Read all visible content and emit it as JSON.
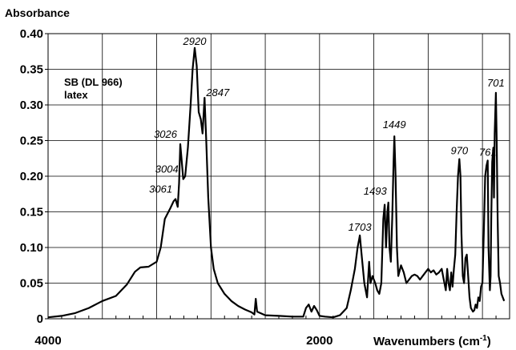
{
  "chart_data": {
    "type": "line",
    "title": "",
    "ylabel": "Absorbance",
    "xlabel_prefix": "Wavenumbers (cm",
    "xlabel_sup": "-1",
    "xlabel_suffix": ")",
    "sample_label": [
      "SB (DL 966)",
      "latex"
    ],
    "xlim": [
      4000,
      600
    ],
    "ylim": [
      0,
      0.4
    ],
    "y_ticks": [
      {
        "value": 0.4,
        "label": "0.40"
      },
      {
        "value": 0.35,
        "label": "0.35"
      },
      {
        "value": 0.3,
        "label": "0.30"
      },
      {
        "value": 0.25,
        "label": "0.25"
      },
      {
        "value": 0.2,
        "label": "0.20"
      },
      {
        "value": 0.15,
        "label": "0.15"
      },
      {
        "value": 0.1,
        "label": "0.10"
      },
      {
        "value": 0.05,
        "label": "0.05"
      },
      {
        "value": 0,
        "label": "0"
      }
    ],
    "x_tick_labels": [
      {
        "value": 4000,
        "label": "4000"
      },
      {
        "value": 2000,
        "label": "2000"
      }
    ],
    "x_grid": [
      3600,
      3200,
      2800,
      2400,
      2000,
      1600,
      1200,
      800
    ],
    "grid": true,
    "peak_labels": [
      {
        "label": "2920",
        "x": 2920,
        "y": 0.38
      },
      {
        "label": "2847",
        "x": 2847,
        "y": 0.31
      },
      {
        "label": "3026",
        "x": 3026,
        "y": 0.245
      },
      {
        "label": "3004",
        "x": 3004,
        "y": 0.196
      },
      {
        "label": "3061",
        "x": 3061,
        "y": 0.168
      },
      {
        "label": "1703",
        "x": 1703,
        "y": 0.117
      },
      {
        "label": "1493",
        "x": 1493,
        "y": 0.163
      },
      {
        "label": "1449",
        "x": 1449,
        "y": 0.256
      },
      {
        "label": "970",
        "x": 970,
        "y": 0.224
      },
      {
        "label": "761",
        "x": 761,
        "y": 0.222
      },
      {
        "label": "701",
        "x": 701,
        "y": 0.317
      }
    ],
    "series": [
      {
        "color": "#000000",
        "points": [
          [
            4000,
            0.002
          ],
          [
            3900,
            0.004
          ],
          [
            3800,
            0.008
          ],
          [
            3700,
            0.015
          ],
          [
            3600,
            0.025
          ],
          [
            3500,
            0.032
          ],
          [
            3420,
            0.048
          ],
          [
            3360,
            0.066
          ],
          [
            3320,
            0.072
          ],
          [
            3260,
            0.073
          ],
          [
            3200,
            0.08
          ],
          [
            3170,
            0.1
          ],
          [
            3140,
            0.14
          ],
          [
            3100,
            0.155
          ],
          [
            3075,
            0.165
          ],
          [
            3061,
            0.168
          ],
          [
            3045,
            0.157
          ],
          [
            3035,
            0.19
          ],
          [
            3026,
            0.245
          ],
          [
            3015,
            0.22
          ],
          [
            3004,
            0.196
          ],
          [
            2990,
            0.2
          ],
          [
            2970,
            0.24
          ],
          [
            2950,
            0.3
          ],
          [
            2935,
            0.35
          ],
          [
            2920,
            0.38
          ],
          [
            2905,
            0.355
          ],
          [
            2890,
            0.29
          ],
          [
            2875,
            0.28
          ],
          [
            2862,
            0.26
          ],
          [
            2847,
            0.31
          ],
          [
            2835,
            0.25
          ],
          [
            2820,
            0.17
          ],
          [
            2800,
            0.1
          ],
          [
            2780,
            0.07
          ],
          [
            2750,
            0.05
          ],
          [
            2700,
            0.035
          ],
          [
            2650,
            0.025
          ],
          [
            2600,
            0.018
          ],
          [
            2550,
            0.013
          ],
          [
            2500,
            0.009
          ],
          [
            2480,
            0.006
          ],
          [
            2470,
            0.028
          ],
          [
            2460,
            0.01
          ],
          [
            2400,
            0.005
          ],
          [
            2300,
            0.004
          ],
          [
            2200,
            0.003
          ],
          [
            2120,
            0.003
          ],
          [
            2100,
            0.015
          ],
          [
            2080,
            0.02
          ],
          [
            2060,
            0.01
          ],
          [
            2040,
            0.018
          ],
          [
            2020,
            0.012
          ],
          [
            2000,
            0.004
          ],
          [
            1960,
            0.003
          ],
          [
            1900,
            0.002
          ],
          [
            1850,
            0.005
          ],
          [
            1800,
            0.015
          ],
          [
            1770,
            0.04
          ],
          [
            1740,
            0.07
          ],
          [
            1720,
            0.1
          ],
          [
            1710,
            0.11
          ],
          [
            1703,
            0.117
          ],
          [
            1690,
            0.09
          ],
          [
            1670,
            0.05
          ],
          [
            1650,
            0.03
          ],
          [
            1635,
            0.08
          ],
          [
            1625,
            0.05
          ],
          [
            1610,
            0.06
          ],
          [
            1600,
            0.055
          ],
          [
            1590,
            0.05
          ],
          [
            1575,
            0.04
          ],
          [
            1560,
            0.035
          ],
          [
            1545,
            0.05
          ],
          [
            1530,
            0.14
          ],
          [
            1520,
            0.16
          ],
          [
            1510,
            0.1
          ],
          [
            1500,
            0.15
          ],
          [
            1493,
            0.163
          ],
          [
            1485,
            0.1
          ],
          [
            1475,
            0.08
          ],
          [
            1465,
            0.14
          ],
          [
            1455,
            0.22
          ],
          [
            1449,
            0.256
          ],
          [
            1440,
            0.2
          ],
          [
            1430,
            0.1
          ],
          [
            1420,
            0.06
          ],
          [
            1400,
            0.075
          ],
          [
            1380,
            0.065
          ],
          [
            1360,
            0.05
          ],
          [
            1340,
            0.055
          ],
          [
            1320,
            0.06
          ],
          [
            1300,
            0.062
          ],
          [
            1280,
            0.06
          ],
          [
            1260,
            0.055
          ],
          [
            1240,
            0.06
          ],
          [
            1220,
            0.065
          ],
          [
            1200,
            0.07
          ],
          [
            1180,
            0.065
          ],
          [
            1160,
            0.068
          ],
          [
            1140,
            0.062
          ],
          [
            1120,
            0.065
          ],
          [
            1100,
            0.07
          ],
          [
            1085,
            0.055
          ],
          [
            1070,
            0.04
          ],
          [
            1060,
            0.07
          ],
          [
            1050,
            0.05
          ],
          [
            1040,
            0.04
          ],
          [
            1030,
            0.065
          ],
          [
            1020,
            0.045
          ],
          [
            1010,
            0.07
          ],
          [
            1000,
            0.09
          ],
          [
            990,
            0.15
          ],
          [
            980,
            0.2
          ],
          [
            970,
            0.224
          ],
          [
            962,
            0.2
          ],
          [
            955,
            0.12
          ],
          [
            945,
            0.06
          ],
          [
            935,
            0.05
          ],
          [
            925,
            0.085
          ],
          [
            915,
            0.09
          ],
          [
            905,
            0.06
          ],
          [
            895,
            0.03
          ],
          [
            885,
            0.015
          ],
          [
            870,
            0.01
          ],
          [
            860,
            0.012
          ],
          [
            850,
            0.02
          ],
          [
            840,
            0.015
          ],
          [
            830,
            0.03
          ],
          [
            820,
            0.025
          ],
          [
            810,
            0.045
          ],
          [
            800,
            0.05
          ],
          [
            790,
            0.12
          ],
          [
            780,
            0.2
          ],
          [
            770,
            0.215
          ],
          [
            761,
            0.222
          ],
          [
            755,
            0.1
          ],
          [
            745,
            0.04
          ],
          [
            740,
            0.06
          ],
          [
            735,
            0.14
          ],
          [
            728,
            0.22
          ],
          [
            720,
            0.24
          ],
          [
            715,
            0.17
          ],
          [
            710,
            0.26
          ],
          [
            701,
            0.317
          ],
          [
            695,
            0.25
          ],
          [
            688,
            0.14
          ],
          [
            680,
            0.06
          ],
          [
            670,
            0.05
          ],
          [
            660,
            0.035
          ],
          [
            650,
            0.03
          ],
          [
            640,
            0.025
          ]
        ]
      }
    ]
  }
}
